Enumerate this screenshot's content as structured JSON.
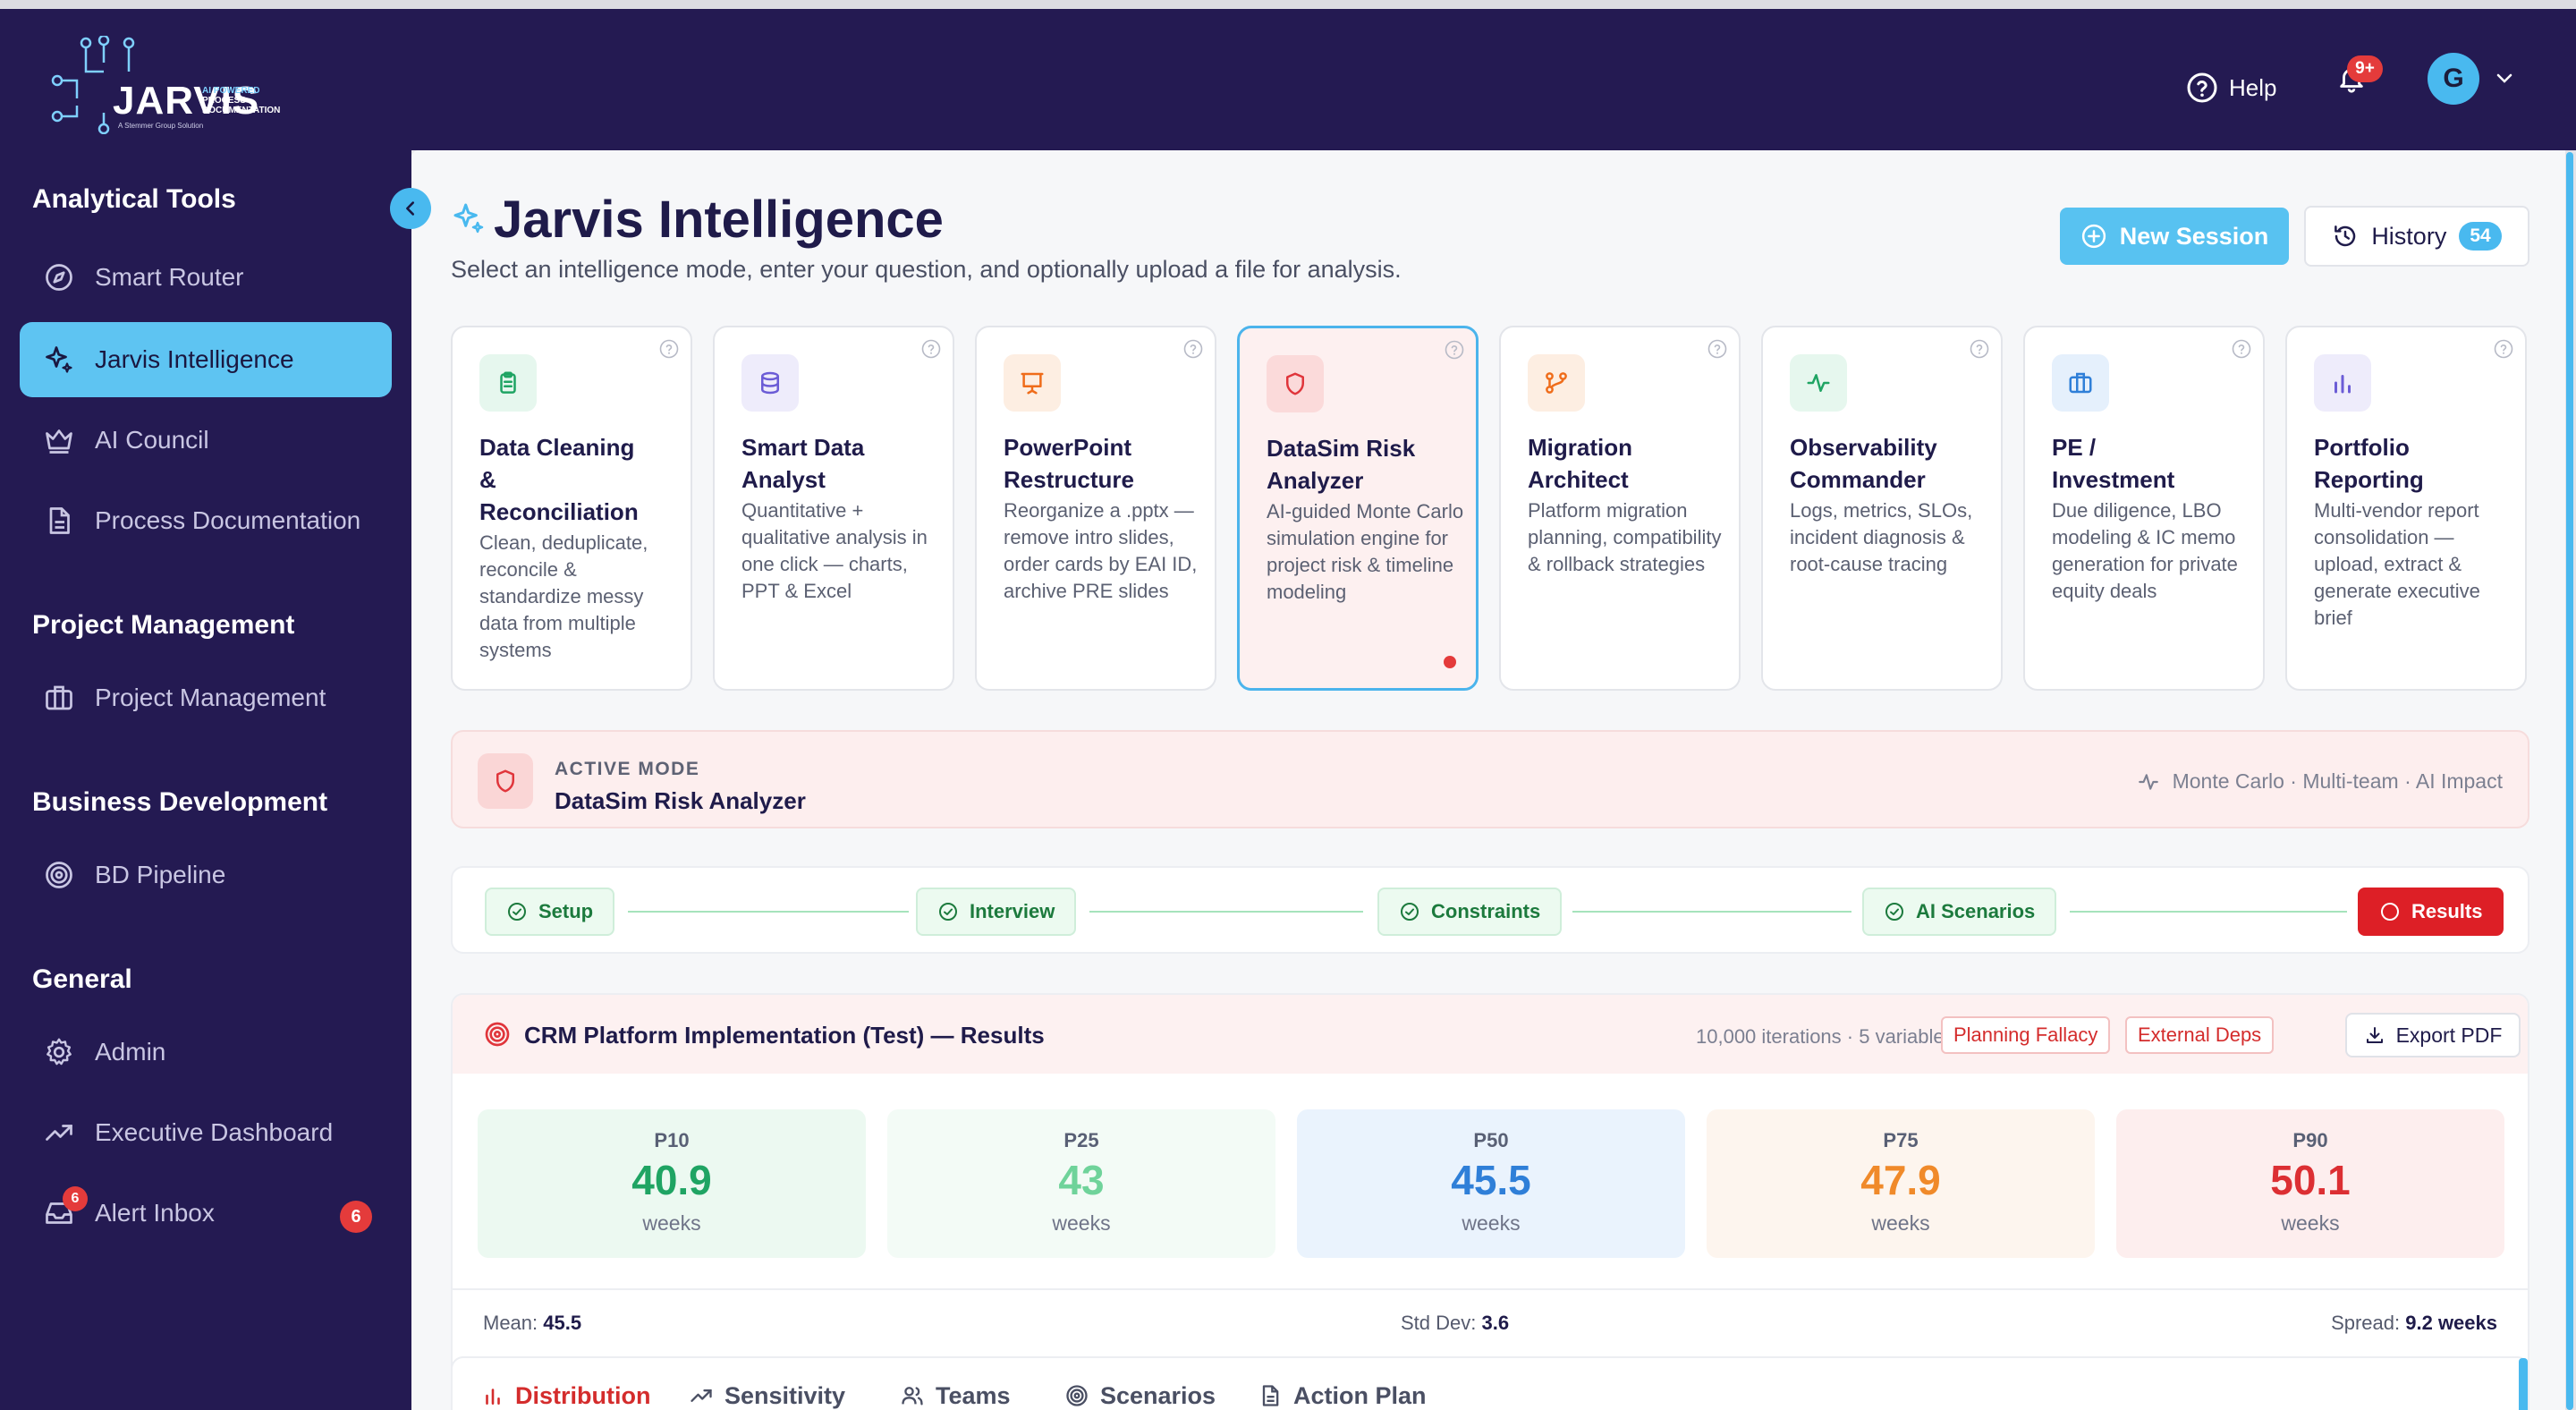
{
  "app": {
    "logo_word": "JARVIS",
    "logo_tag": [
      "AI POWERED",
      "PROCESS",
      "DOCUMENTATION"
    ],
    "logo_sub": "A Stemmer Group Solution",
    "help_label": "Help",
    "notifications_badge": "9+",
    "user_initial": "G"
  },
  "sidebar": {
    "sections": [
      {
        "title": "Analytical Tools",
        "items": [
          {
            "label": "Smart Router",
            "icon": "compass-icon"
          },
          {
            "label": "Jarvis Intelligence",
            "icon": "sparkles-icon",
            "active": true
          },
          {
            "label": "AI Council",
            "icon": "crown-icon"
          },
          {
            "label": "Process Documentation",
            "icon": "document-icon"
          }
        ]
      },
      {
        "title": "Project Management",
        "items": [
          {
            "label": "Project Management",
            "icon": "briefcase-icon"
          }
        ]
      },
      {
        "title": "Business Development",
        "items": [
          {
            "label": "BD Pipeline",
            "icon": "target-icon"
          }
        ]
      },
      {
        "title": "General",
        "items": [
          {
            "label": "Admin",
            "icon": "gear-icon"
          },
          {
            "label": "Executive Dashboard",
            "icon": "trending-up-icon"
          },
          {
            "label": "Alert Inbox",
            "icon": "inbox-icon",
            "badge": "6",
            "icon_badge": "6"
          }
        ]
      }
    ]
  },
  "page": {
    "title": "Jarvis Intelligence",
    "subtitle": "Select an intelligence mode, enter your question, and optionally upload a file for analysis.",
    "new_session_label": "New Session",
    "history_label": "History",
    "history_count": "54"
  },
  "modes": [
    {
      "title": "Data Cleaning & Reconciliation",
      "lines": [
        "Data Cleaning",
        "&",
        "Reconciliation"
      ],
      "desc": "Clean, deduplicate, reconcile & standardize messy data from multiple systems",
      "icon": "clipboard-icon",
      "color": "#1fa463",
      "bg": "#e6f7ee"
    },
    {
      "title": "Smart Data Analyst",
      "lines": [
        "Smart Data",
        "Analyst"
      ],
      "desc": "Quantitative + qualitative analysis in one click — charts, PPT & Excel",
      "icon": "database-icon",
      "color": "#6b5cd6",
      "bg": "#eeecfb"
    },
    {
      "title": "PowerPoint Restructure",
      "lines": [
        "PowerPoint",
        "Restructure"
      ],
      "desc": "Reorganize a .pptx — remove intro slides, order cards by EAI ID, archive PRE slides",
      "icon": "presentation-icon",
      "color": "#ef6c1a",
      "bg": "#fdeee2"
    },
    {
      "title": "DataSim Risk Analyzer",
      "lines": [
        "DataSim Risk",
        "Analyzer"
      ],
      "desc": "AI-guided Monte Carlo simulation engine for project risk & timeline modeling",
      "icon": "shield-icon",
      "color": "#e0353b",
      "bg": "#fbdada",
      "active": true
    },
    {
      "title": "Migration Architect",
      "lines": [
        "Migration",
        "Architect"
      ],
      "desc": "Platform migration planning, compatibility & rollback strategies",
      "icon": "git-branch-icon",
      "color": "#ef6c1a",
      "bg": "#fdeee2"
    },
    {
      "title": "Observability Commander",
      "lines": [
        "Observability",
        "Commander"
      ],
      "desc": "Logs, metrics, SLOs, incident diagnosis & root-cause tracing",
      "icon": "activity-icon",
      "color": "#1fa463",
      "bg": "#e6f7ee"
    },
    {
      "title": "PE / Investment",
      "lines": [
        "PE /",
        "Investment"
      ],
      "desc": "Due diligence, LBO modeling & IC memo generation for private equity deals",
      "icon": "briefcase-icon",
      "color": "#2f7fd8",
      "bg": "#e5f0fc"
    },
    {
      "title": "Portfolio Reporting",
      "lines": [
        "Portfolio",
        "Reporting"
      ],
      "desc": "Multi-vendor report consolidation — upload, extract & generate executive brief",
      "icon": "bar-chart-icon",
      "color": "#6b5cd6",
      "bg": "#eeecfb"
    }
  ],
  "active_mode": {
    "label": "ACTIVE MODE",
    "name": "DataSim Risk Analyzer",
    "tags": "Monte Carlo · Multi-team · AI Impact"
  },
  "steps": [
    "Setup",
    "Interview",
    "Constraints",
    "AI Scenarios",
    "Results"
  ],
  "results": {
    "title": "CRM Platform Implementation (Test) — Results",
    "meta": "10,000 iterations · 5 variables",
    "tags": [
      "Planning Fallacy",
      "External Deps"
    ],
    "export_label": "Export PDF",
    "percentiles": [
      {
        "label": "P10",
        "value": "40.9",
        "unit": "weeks",
        "color": "#1fa463",
        "bg": "#ecf9f1"
      },
      {
        "label": "P25",
        "value": "43",
        "unit": "weeks",
        "color": "#6fd39a",
        "bg": "#f3fbf6"
      },
      {
        "label": "P50",
        "value": "45.5",
        "unit": "weeks",
        "color": "#2f7fd8",
        "bg": "#eaf3fd"
      },
      {
        "label": "P75",
        "value": "47.9",
        "unit": "weeks",
        "color": "#f08a2a",
        "bg": "#fdf5ee"
      },
      {
        "label": "P90",
        "value": "50.1",
        "unit": "weeks",
        "color": "#dc2f33",
        "bg": "#fdeeee"
      }
    ],
    "stats": [
      {
        "label": "Mean:",
        "value": "45.5"
      },
      {
        "label": "Std Dev:",
        "value": "3.6"
      },
      {
        "label": "Spread:",
        "value": "9.2 weeks"
      }
    ]
  },
  "tabs": [
    {
      "label": "Distribution",
      "icon": "bar-chart-icon",
      "active": true
    },
    {
      "label": "Sensitivity",
      "icon": "trending-up-icon"
    },
    {
      "label": "Teams",
      "icon": "users-icon"
    },
    {
      "label": "Scenarios",
      "icon": "target-icon"
    },
    {
      "label": "Action Plan",
      "icon": "document-icon"
    }
  ]
}
